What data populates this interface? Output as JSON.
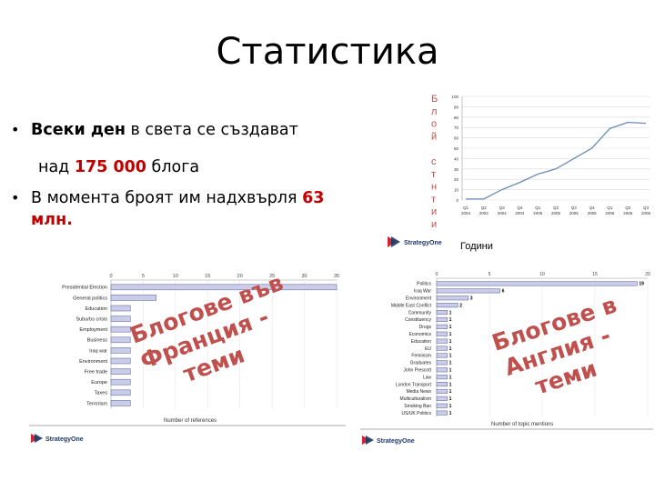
{
  "slide": {
    "title": "Статистика",
    "bullets": [
      {
        "pre": "Всеки ден",
        "mid": " в света се създават",
        "line2_pre": "над ",
        "num": "175 000",
        "line2_post": " блога"
      },
      {
        "pre": "В момента броят им надхвърля ",
        "num": "63",
        "line2": "млн."
      }
    ]
  },
  "line_chart": {
    "type": "line",
    "ylabel_letters": [
      "Б",
      "л",
      "о",
      "й",
      "",
      "с",
      "т",
      "н",
      "т",
      "и",
      "и"
    ],
    "xlabel": "Години",
    "y_ticks": [
      "100",
      "90",
      "80",
      "70",
      "60",
      "50",
      "40",
      "30",
      "20",
      "10",
      "0"
    ],
    "categories": [
      "Q1 2004",
      "Q2 2004",
      "Q3 2004",
      "Q4 2004",
      "Q1 2005",
      "Q2 2005",
      "Q3 2005",
      "Q4 2005",
      "Q1 2006",
      "Q2 2006",
      "Q3 2006"
    ],
    "values": [
      1,
      1,
      10,
      17,
      25,
      30,
      40,
      50,
      69,
      75,
      74
    ],
    "ylim": [
      0,
      100
    ],
    "logo": "StrategyOne",
    "colors": {
      "line": "#6b8cb3",
      "grid": "#d9d9d9"
    }
  },
  "france_chart": {
    "type": "bar",
    "categories": [
      "Presidential Election",
      "General politics",
      "Education",
      "Suburbs crisis",
      "Employment",
      "Business",
      "Iraq war",
      "Environment",
      "Free trade",
      "Europe",
      "Taxes",
      "Terrorism"
    ],
    "values": [
      35,
      7,
      3,
      3,
      3,
      3,
      3,
      3,
      3,
      3,
      3,
      3
    ],
    "x_ticks": [
      "0",
      "5",
      "10",
      "15",
      "20",
      "25",
      "30",
      "35"
    ],
    "xlim": [
      0,
      35
    ],
    "xlabel": "Number of references",
    "overlay_lines": [
      "Блогове във",
      "Франция -",
      "теми"
    ],
    "logo": "StrategyOne",
    "colors": {
      "bar": "#c9cde8",
      "bar_border": "#6d6fa8"
    }
  },
  "uk_chart": {
    "type": "bar",
    "categories": [
      "Politics",
      "Iraq War",
      "Environment",
      "Middle East Conflict",
      "Community",
      "Constituency",
      "Drugs",
      "Economics",
      "Education",
      "EU",
      "Feminism",
      "Graduates",
      "John Prescott",
      "Law",
      "London Transport",
      "Media News",
      "Multiculturalism",
      "Smoking Ban",
      "US/UK Politics"
    ],
    "values": [
      19,
      6,
      3,
      2,
      1,
      1,
      1,
      1,
      1,
      1,
      1,
      1,
      1,
      1,
      1,
      1,
      1,
      1,
      1
    ],
    "x_ticks": [
      "0",
      "5",
      "10",
      "15",
      "20"
    ],
    "xlim": [
      0,
      20
    ],
    "xlabel": "Number of topic mentions",
    "overlay_lines": [
      "Блогове в",
      "Англия -",
      "теми"
    ],
    "logo": "StrategyOne",
    "colors": {
      "bar": "#c9cde8",
      "bar_border": "#6d6fa8"
    }
  }
}
